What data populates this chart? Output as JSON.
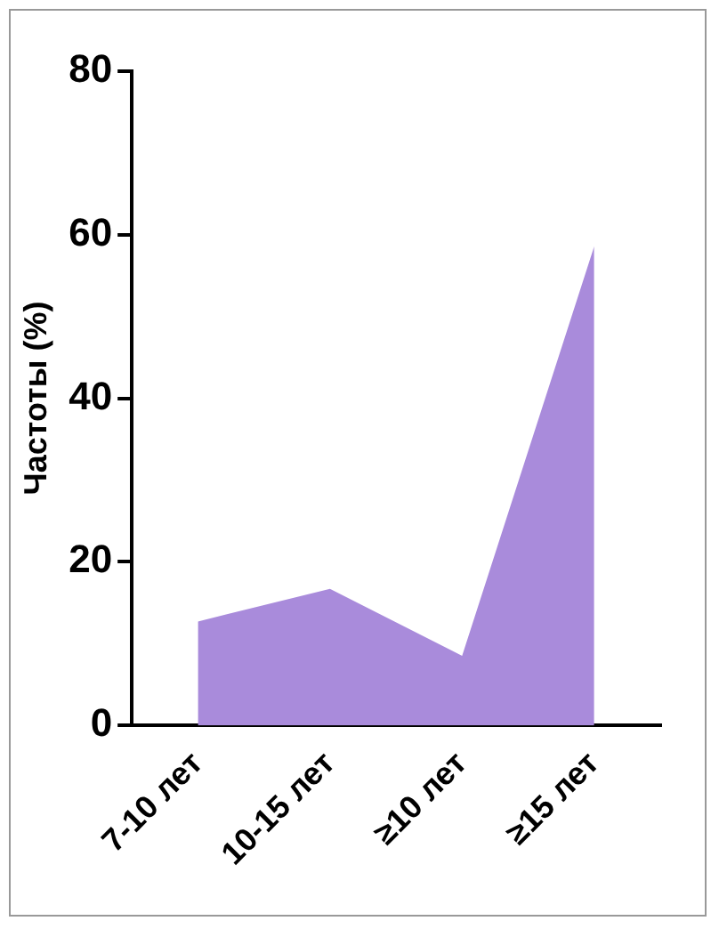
{
  "chart_data": {
    "type": "area",
    "ylabel": "Частоты (%)",
    "categories": [
      "7-10 лет",
      "10-15 лет",
      "≥10 лет",
      "≥15 лет"
    ],
    "series": [
      {
        "color": "#a98bdb",
        "values": [
          12.7,
          16.7,
          8.5,
          58.6
        ]
      }
    ],
    "ylim": [
      0,
      80
    ],
    "yticks": [
      0,
      20,
      40,
      60,
      80
    ],
    "grid": false,
    "legend": false
  }
}
